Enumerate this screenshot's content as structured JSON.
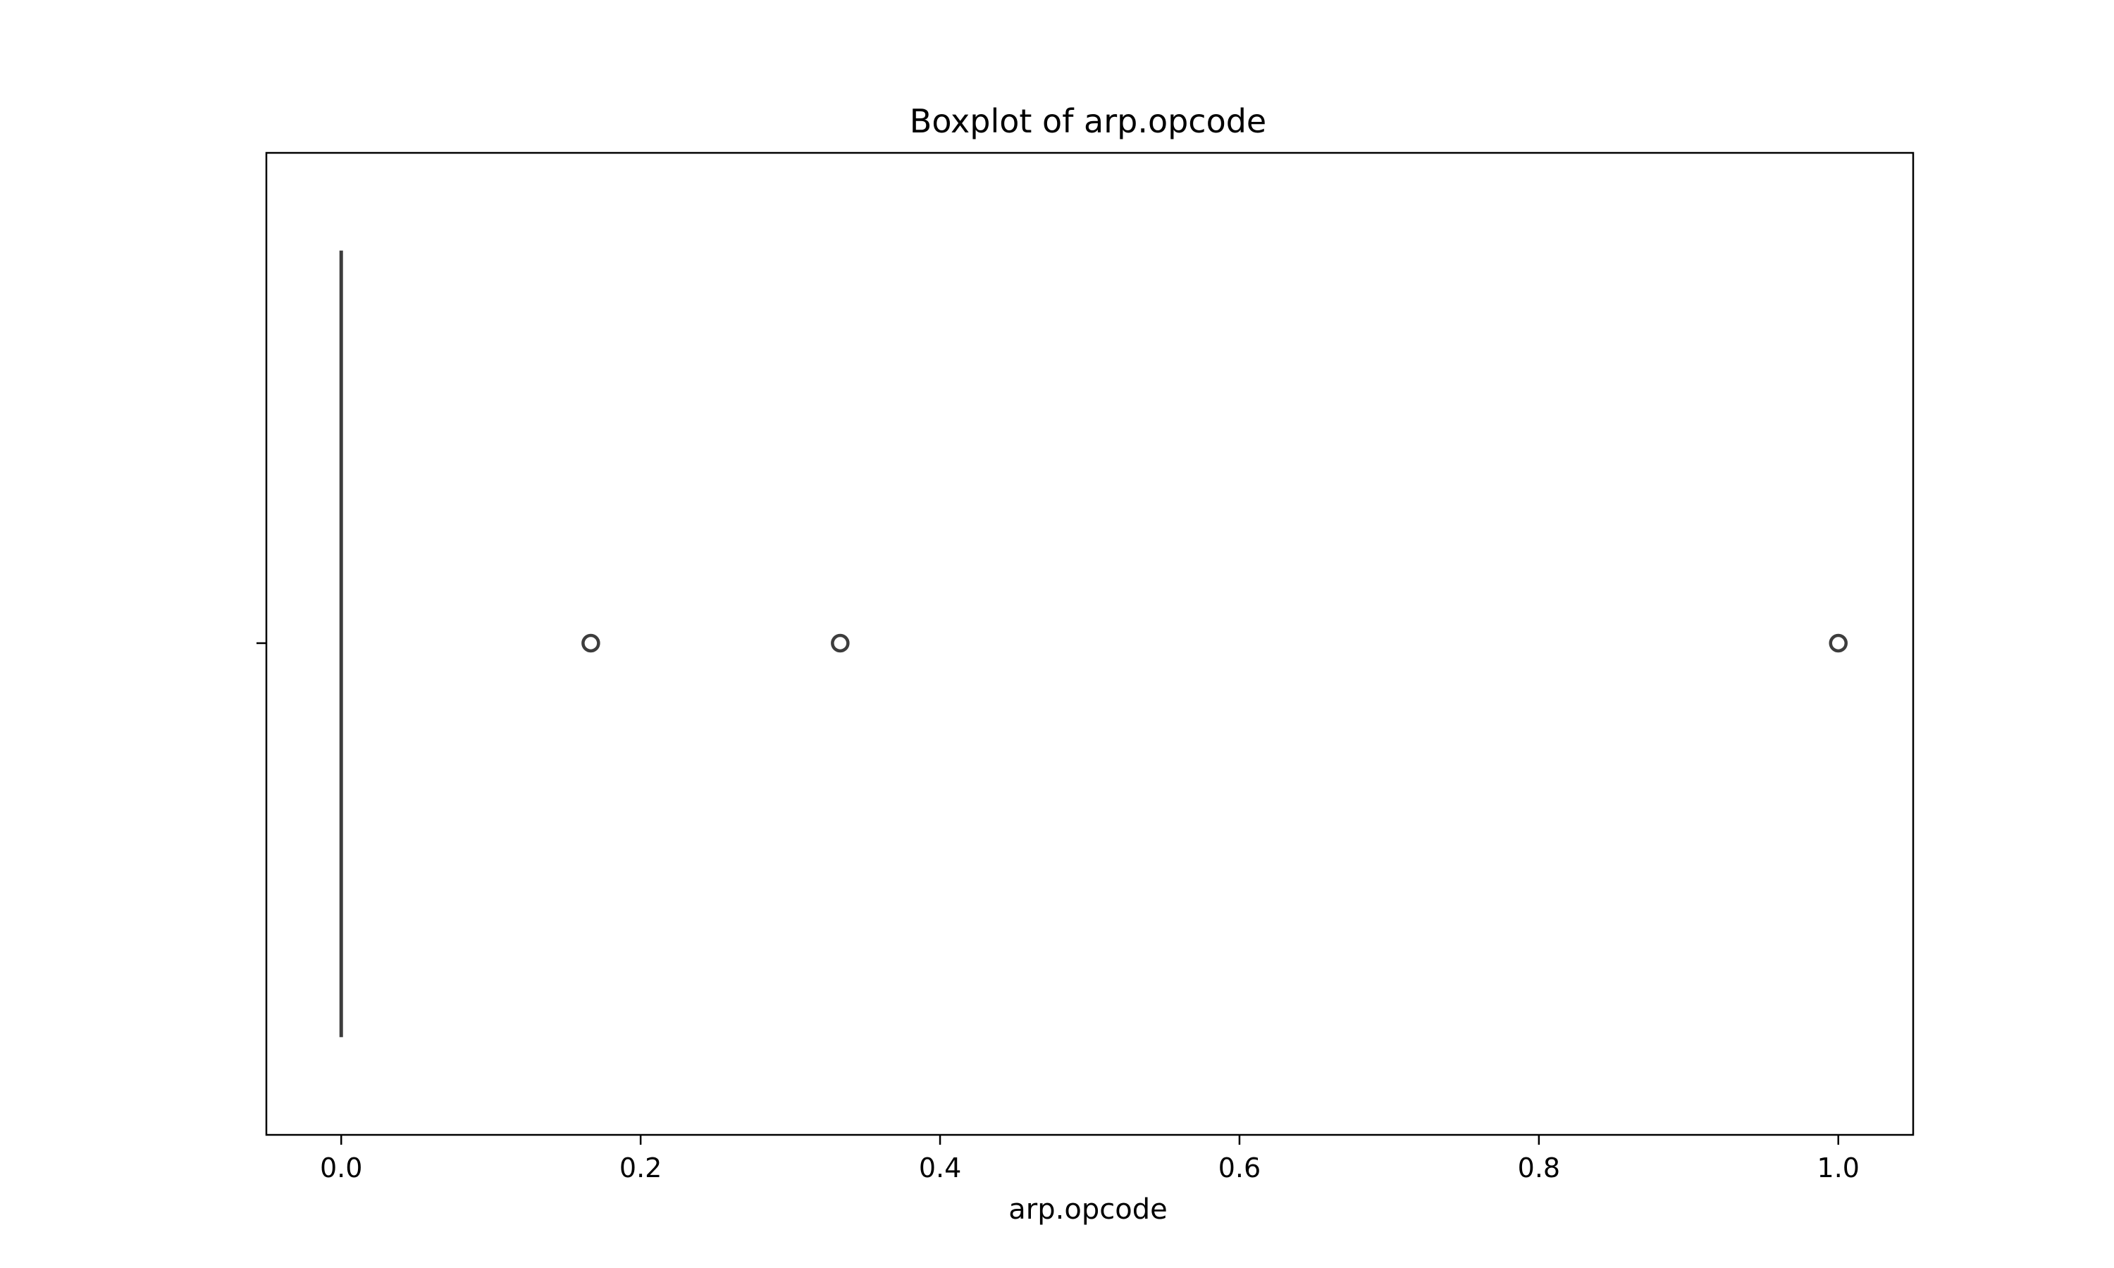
{
  "chart_data": {
    "type": "box",
    "orientation": "horizontal",
    "title": "Boxplot of arp.opcode",
    "xlabel": "arp.opcode",
    "ylabel": "",
    "xlim": [
      -0.05,
      1.05
    ],
    "xticks": [
      0.0,
      0.2,
      0.4,
      0.6,
      0.8,
      1.0
    ],
    "xtick_labels": [
      "0.0",
      "0.2",
      "0.4",
      "0.6",
      "0.8",
      "1.0"
    ],
    "grid": false,
    "legend": "none",
    "box": {
      "q1": 0.0,
      "median": 0.0,
      "q3": 0.0,
      "whisker_low": 0.0,
      "whisker_high": 0.0
    },
    "outliers": [
      0.1667,
      0.3333,
      1.0
    ],
    "colors": {
      "box_line": "#3d3d3d",
      "outlier_edge": "#3d3d3d",
      "axes": "#000000"
    }
  }
}
